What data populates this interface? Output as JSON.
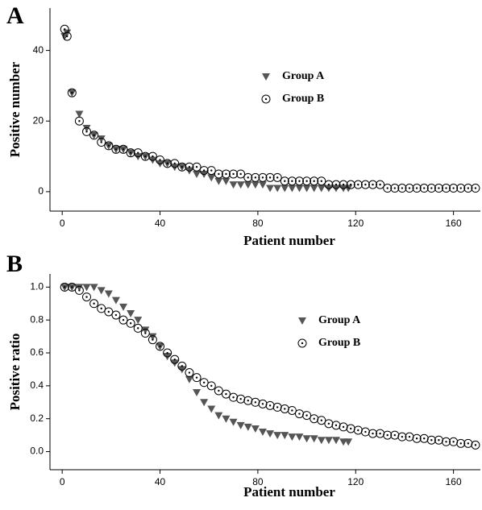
{
  "chart_data": [
    {
      "type": "scatter",
      "panel_label": "A",
      "xlabel": "Patient number",
      "ylabel": "Positive number",
      "xlim": [
        -5,
        171
      ],
      "xticks": [
        0,
        40,
        80,
        120,
        160
      ],
      "ylim": [
        -5.5,
        52
      ],
      "yticks": [
        0,
        20,
        40
      ],
      "legend": "center",
      "series": [
        {
          "name": "Group A",
          "color": "#555555",
          "marker": "triangle-down",
          "x": [
            1,
            2,
            4,
            7,
            10,
            13,
            16,
            19,
            22,
            25,
            28,
            31,
            34,
            37,
            40,
            43,
            46,
            49,
            52,
            55,
            58,
            61,
            64,
            67,
            70,
            73,
            76,
            79,
            82,
            85,
            88,
            91,
            94,
            97,
            100,
            103,
            106,
            109,
            112,
            115,
            117
          ],
          "values": [
            44,
            45,
            28,
            22,
            18,
            16,
            15,
            13,
            12,
            12,
            11,
            10,
            10,
            9,
            8,
            8,
            7,
            7,
            6,
            5,
            5,
            4,
            3,
            3,
            2,
            2,
            2,
            2,
            2,
            1,
            1,
            1,
            1,
            1,
            1,
            1,
            1,
            1,
            1,
            1,
            1
          ]
        },
        {
          "name": "Group B",
          "color": "#000000",
          "marker": "circle-dot",
          "x": [
            1,
            2,
            4,
            7,
            10,
            13,
            16,
            19,
            22,
            25,
            28,
            31,
            34,
            37,
            40,
            43,
            46,
            49,
            52,
            55,
            58,
            61,
            64,
            67,
            70,
            73,
            76,
            79,
            82,
            85,
            88,
            91,
            94,
            97,
            100,
            103,
            106,
            109,
            112,
            115,
            118,
            121,
            124,
            127,
            130,
            133,
            136,
            139,
            142,
            145,
            148,
            151,
            154,
            157,
            160,
            163,
            166,
            169
          ],
          "values": [
            46,
            44,
            28,
            20,
            17,
            16,
            14,
            13,
            12,
            12,
            11,
            11,
            10,
            10,
            9,
            8,
            8,
            7,
            7,
            7,
            6,
            6,
            5,
            5,
            5,
            5,
            4,
            4,
            4,
            4,
            4,
            3,
            3,
            3,
            3,
            3,
            3,
            2,
            2,
            2,
            2,
            2,
            2,
            2,
            2,
            1,
            1,
            1,
            1,
            1,
            1,
            1,
            1,
            1,
            1,
            1,
            1,
            1
          ]
        }
      ]
    },
    {
      "type": "scatter",
      "panel_label": "B",
      "xlabel": "Patient number",
      "ylabel": "Positive ratio",
      "xlim": [
        -5,
        171
      ],
      "xticks": [
        0,
        40,
        80,
        120,
        160
      ],
      "ylim": [
        -0.11,
        1.08
      ],
      "yticks": [
        {
          "value": 0,
          "label": "0.0"
        },
        0.2,
        0.4,
        0.6,
        0.8,
        {
          "value": 1,
          "label": "1.0"
        }
      ],
      "legend": "center",
      "series": [
        {
          "name": "Group A",
          "color": "#555555",
          "marker": "triangle-down",
          "x": [
            1,
            4,
            7,
            10,
            13,
            16,
            19,
            22,
            25,
            28,
            31,
            34,
            37,
            40,
            43,
            46,
            49,
            52,
            55,
            58,
            61,
            64,
            67,
            70,
            73,
            76,
            79,
            82,
            85,
            88,
            91,
            94,
            97,
            100,
            103,
            106,
            109,
            112,
            115,
            117
          ],
          "values": [
            1,
            1,
            1,
            1,
            1,
            0.98,
            0.96,
            0.92,
            0.88,
            0.84,
            0.8,
            0.74,
            0.7,
            0.64,
            0.58,
            0.54,
            0.5,
            0.44,
            0.36,
            0.3,
            0.26,
            0.22,
            0.2,
            0.18,
            0.16,
            0.15,
            0.14,
            0.12,
            0.11,
            0.1,
            0.1,
            0.09,
            0.09,
            0.08,
            0.08,
            0.07,
            0.07,
            0.07,
            0.06,
            0.06
          ]
        },
        {
          "name": "Group B",
          "color": "#000000",
          "marker": "circle-dot",
          "x": [
            1,
            4,
            7,
            10,
            13,
            16,
            19,
            22,
            25,
            28,
            31,
            34,
            37,
            40,
            43,
            46,
            49,
            52,
            55,
            58,
            61,
            64,
            67,
            70,
            73,
            76,
            79,
            82,
            85,
            88,
            91,
            94,
            97,
            100,
            103,
            106,
            109,
            112,
            115,
            118,
            121,
            124,
            127,
            130,
            133,
            136,
            139,
            142,
            145,
            148,
            151,
            154,
            157,
            160,
            163,
            166,
            169
          ],
          "values": [
            1,
            1,
            0.98,
            0.94,
            0.9,
            0.87,
            0.85,
            0.83,
            0.8,
            0.78,
            0.75,
            0.72,
            0.68,
            0.64,
            0.6,
            0.56,
            0.52,
            0.48,
            0.45,
            0.42,
            0.4,
            0.37,
            0.35,
            0.33,
            0.32,
            0.31,
            0.3,
            0.29,
            0.28,
            0.27,
            0.26,
            0.25,
            0.23,
            0.22,
            0.2,
            0.19,
            0.17,
            0.16,
            0.15,
            0.14,
            0.13,
            0.12,
            0.11,
            0.11,
            0.1,
            0.1,
            0.09,
            0.09,
            0.08,
            0.08,
            0.07,
            0.07,
            0.06,
            0.06,
            0.05,
            0.05,
            0.04
          ]
        }
      ]
    }
  ]
}
